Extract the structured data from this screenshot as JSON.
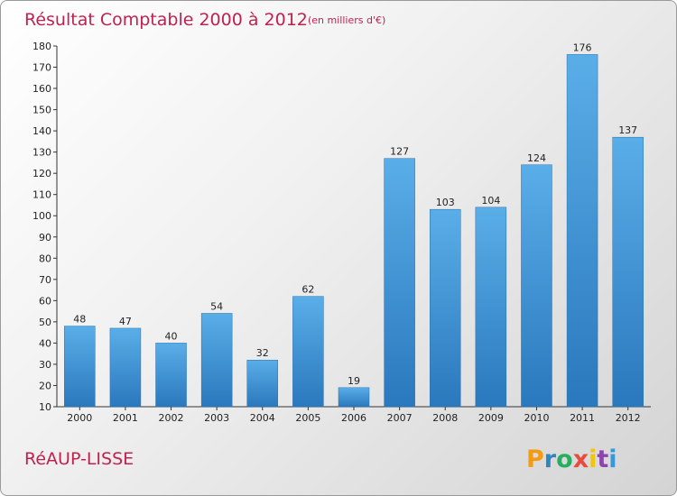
{
  "chart_data": {
    "type": "bar",
    "title": "Résultat Comptable 2000 à 2012",
    "subtitle": "(en milliers d'€)",
    "xlabel": "",
    "ylabel": "",
    "categories": [
      "2000",
      "2001",
      "2002",
      "2003",
      "2004",
      "2005",
      "2006",
      "2007",
      "2008",
      "2009",
      "2010",
      "2011",
      "2012"
    ],
    "values": [
      48,
      47,
      40,
      54,
      32,
      62,
      19,
      127,
      103,
      104,
      124,
      176,
      137
    ],
    "ylim": [
      10,
      180
    ],
    "yticks": [
      10,
      20,
      30,
      40,
      50,
      60,
      70,
      80,
      90,
      100,
      110,
      120,
      130,
      140,
      150,
      160,
      170,
      180
    ],
    "grid": false,
    "bar_color": "#3f8fd2"
  },
  "commune_name": "RéAUP-LISSE",
  "logo": {
    "letters": [
      "P",
      "r",
      "o",
      "x",
      "i",
      "t",
      "i"
    ],
    "colors": [
      "#f39c12",
      "#2e86c1",
      "#27ae60",
      "#e74c3c",
      "#f1c40f",
      "#8e44ad",
      "#3498db"
    ]
  },
  "colors": {
    "title": "#c0224f",
    "bar_dark": "#2a78bd",
    "bar_light": "#5aaee8"
  }
}
